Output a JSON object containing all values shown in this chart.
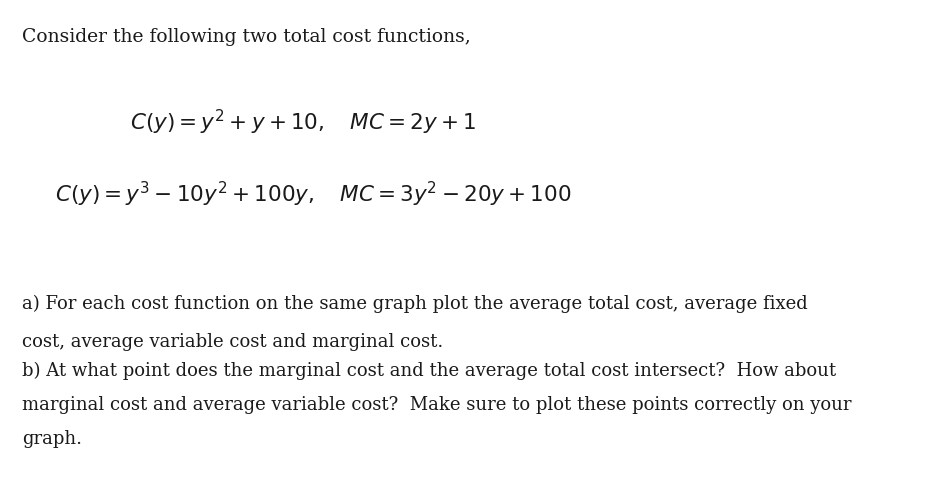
{
  "background_color": "#ffffff",
  "text_color": "#1a1a1a",
  "title_line": "Consider the following two total cost functions,",
  "eq1": "$C(y) = y^2 + y + 10, \\quad MC = 2y + 1$",
  "eq2": "$C(y) = y^3 - 10y^2 + 100y, \\quad MC = 3y^2 - 20y + 100$",
  "part_a1": "a) For each cost function on the same graph plot the average total cost, average fixed",
  "part_a2": "cost, average variable cost and marginal cost.",
  "part_b1": "b) At what point does the marginal cost and the average total cost intersect?  How about",
  "part_b2": "marginal cost and average variable cost?  Make sure to plot these points correctly on your",
  "part_b3": "graph.",
  "font_size_title": 13.5,
  "font_size_eq": 15.5,
  "font_size_body": 13.0
}
